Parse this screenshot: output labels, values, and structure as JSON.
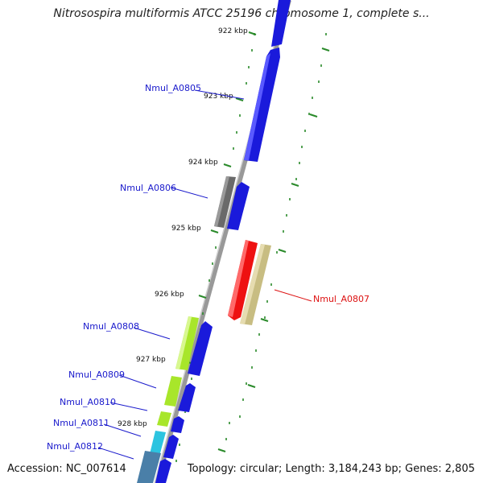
{
  "title": "Nitrosospira multiformis ATCC 25196 chromosome 1, complete s...",
  "footer": {
    "accession": "Accession: NC_007614",
    "topology": "Topology: circular; Length: 3,184,243 bp; Genes: 2,805"
  },
  "axis": {
    "unit": "kbp",
    "ticks": [
      {
        "value": 922,
        "label": "922 kbp"
      },
      {
        "value": 923,
        "label": "923 kbp"
      },
      {
        "value": 924,
        "label": "924 kbp"
      },
      {
        "value": 925,
        "label": "925 kbp"
      },
      {
        "value": 926,
        "label": "926 kbp"
      },
      {
        "value": 927,
        "label": "927 kbp"
      },
      {
        "value": 928,
        "label": "928 kbp"
      }
    ]
  },
  "genes": [
    {
      "name": "Nmul_A0805",
      "strand": "+",
      "color": "#1a1adb",
      "label_color": "#1a1acc"
    },
    {
      "name": "Nmul_A0806",
      "strand": "+",
      "color": "#1a1adb",
      "label_color": "#1a1acc"
    },
    {
      "name": "Nmul_A0807",
      "strand": "-",
      "color": "#ee1111",
      "label_color": "#dd1111"
    },
    {
      "name": "Nmul_A0808",
      "strand": "+",
      "color": "#1a1adb",
      "label_color": "#1a1acc"
    },
    {
      "name": "Nmul_A0809",
      "strand": "+",
      "color": "#1a1adb",
      "label_color": "#1a1acc"
    },
    {
      "name": "Nmul_A0810",
      "strand": "+",
      "color": "#1a1adb",
      "label_color": "#1a1acc"
    },
    {
      "name": "Nmul_A0811",
      "strand": "+",
      "color": "#1a1adb",
      "label_color": "#1a1acc"
    },
    {
      "name": "Nmul_A0812",
      "strand": "+",
      "color": "#1a1adb",
      "label_color": "#1a1acc"
    }
  ],
  "colors": {
    "backbone": "#999999",
    "tick_marks": "#2a8a2a",
    "cog_gray": "#6a6a6a",
    "cog_khaki": "#c8bd82",
    "cog_lime": "#a8e62a",
    "cog_cyan": "#2cc4e0",
    "cog_steel": "#4a7fa8"
  }
}
